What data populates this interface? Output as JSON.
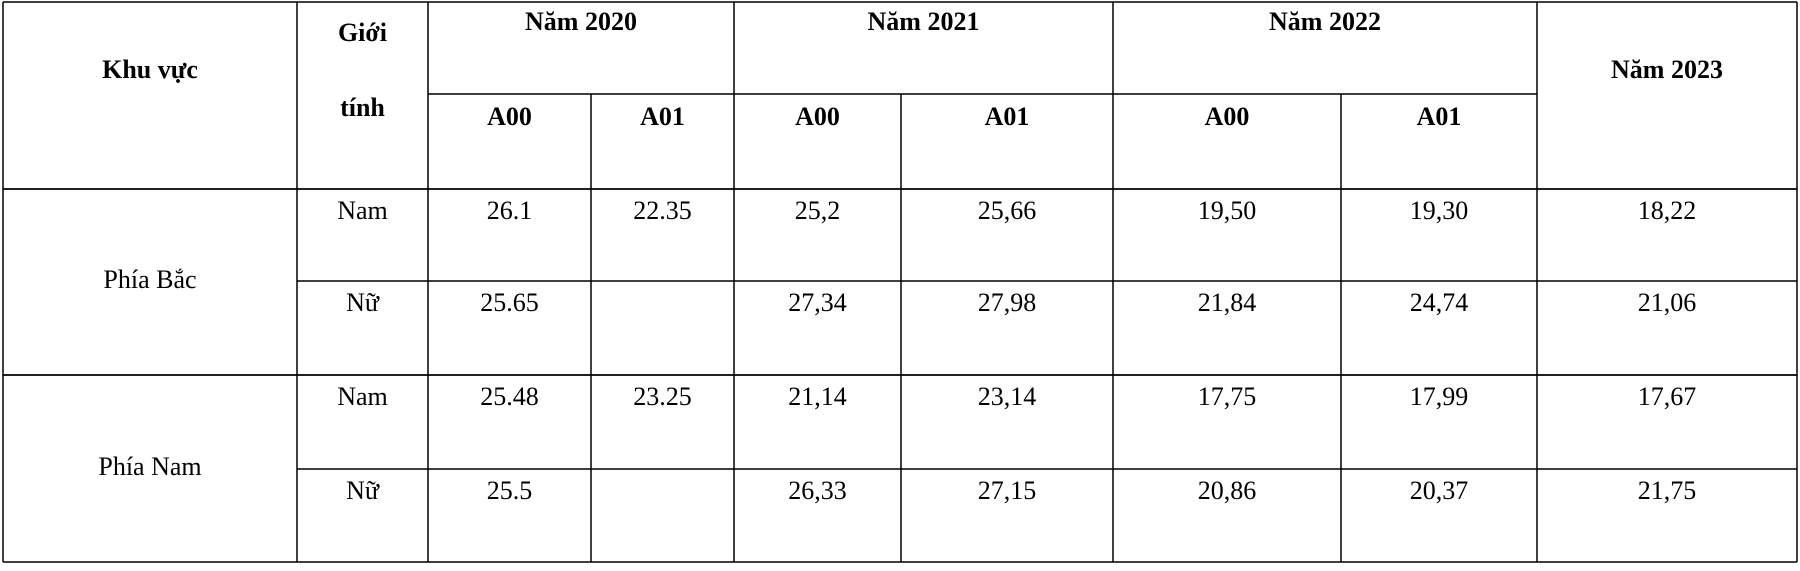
{
  "table": {
    "header": {
      "region": "Khu vực",
      "gender": "Giới tính",
      "years": [
        {
          "label": "Năm 2020",
          "columns": [
            "A00",
            "A01"
          ]
        },
        {
          "label": "Năm 2021",
          "columns": [
            "A00",
            "A01"
          ]
        },
        {
          "label": "Năm 2022",
          "columns": [
            "A00",
            "A01"
          ]
        },
        {
          "label": "Năm 2023"
        }
      ]
    },
    "regions": [
      {
        "name": "Phía Bắc",
        "rows": [
          {
            "gender": "Nam",
            "values": [
              "26.1",
              "22.35",
              "25,2",
              "25,66",
              "19,50",
              "19,30",
              "18,22"
            ]
          },
          {
            "gender": "Nữ",
            "values": [
              "25.65",
              null,
              "27,34",
              "27,98",
              "21,84",
              "24,74",
              "21,06"
            ]
          }
        ]
      },
      {
        "name": "Phía Nam",
        "rows": [
          {
            "gender": "Nam",
            "values": [
              "25.48",
              "23.25",
              "21,14",
              "23,14",
              "17,75",
              "17,99",
              "17,67"
            ]
          },
          {
            "gender": "Nữ",
            "values": [
              "25.5",
              null,
              "26,33",
              "27,15",
              "20,86",
              "20,37",
              "21,75"
            ]
          }
        ]
      }
    ]
  }
}
